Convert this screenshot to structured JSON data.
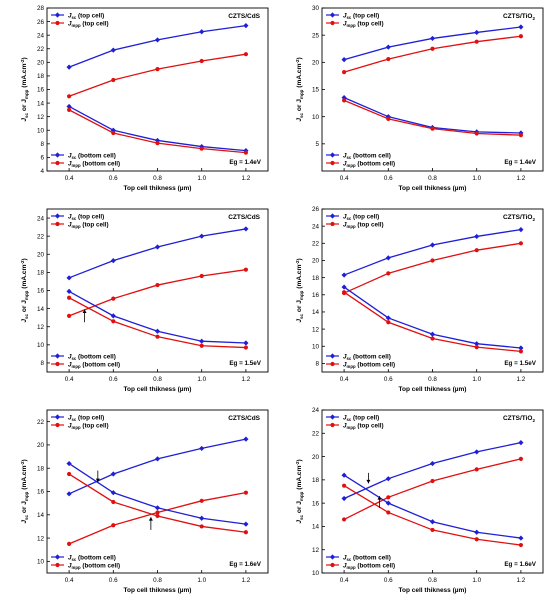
{
  "figure": {
    "xlabel": "Top cell thikness (µm)",
    "ylabel_main": "J",
    "ylabel_sub1": "sc",
    "ylabel_mid": " or J",
    "ylabel_sub2": "mpp",
    "ylabel_unit": " (mA.cm",
    "ylabel_sup": "-2",
    "ylabel_end": ")"
  },
  "legend": {
    "top_jsc": "top cell",
    "top_jmpp": "top cell",
    "bottom_jsc": "bottom cell",
    "bottom_jmpp": "bottom cell"
  },
  "colors": {
    "jsc": "#1f1fd6",
    "jmpp": "#e01010",
    "axis": "#000000"
  },
  "chart_data": [
    {
      "type": "line",
      "title": "CZTS/CdS",
      "annotation": "Eg = 1.4eV",
      "x": [
        0.4,
        0.6,
        0.8,
        1.0,
        1.2
      ],
      "xlim": [
        0.3,
        1.3
      ],
      "xticks": [
        "0.4",
        "0.6",
        "0.8",
        "1.0",
        "1.2"
      ],
      "ylim": [
        4,
        28
      ],
      "yticks": [
        4,
        6,
        8,
        10,
        12,
        14,
        16,
        18,
        20,
        22,
        24,
        26,
        28
      ],
      "series": [
        {
          "name": "Jsc (top cell)",
          "color": "#1f1fd6",
          "marker": "diamond",
          "values": [
            19.3,
            21.8,
            23.3,
            24.5,
            25.4
          ]
        },
        {
          "name": "Jmpp (top cell)",
          "color": "#e01010",
          "marker": "circle",
          "values": [
            15.0,
            17.4,
            19.0,
            20.2,
            21.2
          ]
        },
        {
          "name": "Jsc (bottom cell)",
          "color": "#1f1fd6",
          "marker": "diamond",
          "values": [
            13.5,
            10.0,
            8.5,
            7.6,
            7.0
          ]
        },
        {
          "name": "Jmpp (bottom cell)",
          "color": "#e01010",
          "marker": "circle",
          "values": [
            13.0,
            9.6,
            8.1,
            7.3,
            6.7
          ]
        }
      ],
      "arrows": []
    },
    {
      "type": "line",
      "title": "CZTS/TiO",
      "title_sub": "2",
      "annotation": "Eg = 1.4eV",
      "x": [
        0.4,
        0.6,
        0.8,
        1.0,
        1.2
      ],
      "xlim": [
        0.3,
        1.3
      ],
      "xticks": [
        "0.4",
        "0.6",
        "0.8",
        "1.0",
        "1.2"
      ],
      "ylim": [
        0,
        30
      ],
      "yticks": [
        5,
        10,
        15,
        20,
        25,
        30
      ],
      "series": [
        {
          "name": "Jsc (top cell)",
          "color": "#1f1fd6",
          "marker": "diamond",
          "values": [
            20.5,
            22.8,
            24.4,
            25.5,
            26.5
          ]
        },
        {
          "name": "Jmpp (top cell)",
          "color": "#e01010",
          "marker": "circle",
          "values": [
            18.2,
            20.6,
            22.5,
            23.8,
            24.8
          ]
        },
        {
          "name": "Jsc (bottom cell)",
          "color": "#1f1fd6",
          "marker": "diamond",
          "values": [
            13.5,
            10.0,
            8.0,
            7.2,
            7.0
          ]
        },
        {
          "name": "Jmpp (bottom cell)",
          "color": "#e01010",
          "marker": "circle",
          "values": [
            13.0,
            9.6,
            7.8,
            6.9,
            6.6
          ]
        }
      ],
      "arrows": []
    },
    {
      "type": "line",
      "title": "CZTS/CdS",
      "annotation": "Eg = 1.5eV",
      "x": [
        0.4,
        0.6,
        0.8,
        1.0,
        1.2
      ],
      "xlim": [
        0.3,
        1.3
      ],
      "xticks": [
        "0.4",
        "0.6",
        "0.8",
        "1.0",
        "1.2"
      ],
      "ylim": [
        7,
        25
      ],
      "yticks": [
        8,
        10,
        12,
        14,
        16,
        18,
        20,
        22,
        24
      ],
      "series": [
        {
          "name": "Jsc (top cell)",
          "color": "#1f1fd6",
          "marker": "diamond",
          "values": [
            17.4,
            19.3,
            20.8,
            22.0,
            22.8
          ]
        },
        {
          "name": "Jmpp (top cell)",
          "color": "#e01010",
          "marker": "circle",
          "values": [
            13.2,
            15.1,
            16.6,
            17.6,
            18.3
          ]
        },
        {
          "name": "Jsc (bottom cell)",
          "color": "#1f1fd6",
          "marker": "diamond",
          "values": [
            15.9,
            13.2,
            11.5,
            10.4,
            10.2
          ]
        },
        {
          "name": "Jmpp (bottom cell)",
          "color": "#e01010",
          "marker": "circle",
          "values": [
            15.2,
            12.6,
            10.9,
            9.9,
            9.7
          ]
        }
      ],
      "arrows": [
        {
          "x": 0.47,
          "y_from": 12.5,
          "y_to": 13.9
        }
      ]
    },
    {
      "type": "line",
      "title": "CZTS/TiO",
      "title_sub": "2",
      "annotation": "Eg = 1.5eV",
      "x": [
        0.4,
        0.6,
        0.8,
        1.0,
        1.2
      ],
      "xlim": [
        0.3,
        1.3
      ],
      "xticks": [
        "0.4",
        "0.6",
        "0.8",
        "1.0",
        "1.2"
      ],
      "ylim": [
        7,
        26
      ],
      "yticks": [
        8,
        10,
        12,
        14,
        16,
        18,
        20,
        22,
        24,
        26
      ],
      "series": [
        {
          "name": "Jsc (top cell)",
          "color": "#1f1fd6",
          "marker": "diamond",
          "values": [
            18.3,
            20.3,
            21.8,
            22.8,
            23.6
          ]
        },
        {
          "name": "Jmpp (top cell)",
          "color": "#e01010",
          "marker": "circle",
          "values": [
            16.2,
            18.5,
            20.0,
            21.2,
            22.0
          ]
        },
        {
          "name": "Jsc (bottom cell)",
          "color": "#1f1fd6",
          "marker": "diamond",
          "values": [
            16.9,
            13.3,
            11.4,
            10.3,
            9.8
          ]
        },
        {
          "name": "Jmpp (bottom cell)",
          "color": "#e01010",
          "marker": "circle",
          "values": [
            16.3,
            12.8,
            10.9,
            9.9,
            9.4
          ]
        }
      ],
      "arrows": []
    },
    {
      "type": "line",
      "title": "CZTS/CdS",
      "annotation": "Eg = 1.6eV",
      "x": [
        0.4,
        0.6,
        0.8,
        1.0,
        1.2
      ],
      "xlim": [
        0.3,
        1.3
      ],
      "xticks": [
        "0.4",
        "0.6",
        "0.8",
        "1.0",
        "1.2"
      ],
      "ylim": [
        9,
        23
      ],
      "yticks": [
        10,
        12,
        14,
        16,
        18,
        20,
        22
      ],
      "series": [
        {
          "name": "Jsc (top cell)",
          "color": "#1f1fd6",
          "marker": "diamond",
          "values": [
            15.8,
            17.5,
            18.8,
            19.7,
            20.5
          ]
        },
        {
          "name": "Jmpp (top cell)",
          "color": "#e01010",
          "marker": "circle",
          "values": [
            11.5,
            13.1,
            14.2,
            15.2,
            15.9
          ]
        },
        {
          "name": "Jsc (bottom cell)",
          "color": "#1f1fd6",
          "marker": "diamond",
          "values": [
            18.4,
            15.9,
            14.6,
            13.7,
            13.2
          ]
        },
        {
          "name": "Jmpp (bottom cell)",
          "color": "#e01010",
          "marker": "circle",
          "values": [
            17.5,
            15.1,
            13.9,
            13.0,
            12.5
          ]
        }
      ],
      "arrows": [
        {
          "x": 0.53,
          "y_from": 17.8,
          "y_to": 16.8
        },
        {
          "x": 0.77,
          "y_from": 12.7,
          "y_to": 13.8
        }
      ]
    },
    {
      "type": "line",
      "title": "CZTS/TiO",
      "title_sub": "2",
      "annotation": "Eg = 1.6eV",
      "x": [
        0.4,
        0.6,
        0.8,
        1.0,
        1.2
      ],
      "xlim": [
        0.3,
        1.3
      ],
      "xticks": [
        "0.4",
        "0.6",
        "0.8",
        "1.0",
        "1.2"
      ],
      "ylim": [
        10,
        24
      ],
      "yticks": [
        10,
        12,
        14,
        16,
        18,
        20,
        22,
        24
      ],
      "series": [
        {
          "name": "Jsc (top cell)",
          "color": "#1f1fd6",
          "marker": "diamond",
          "values": [
            16.4,
            18.1,
            19.4,
            20.4,
            21.2
          ]
        },
        {
          "name": "Jmpp (top cell)",
          "color": "#e01010",
          "marker": "circle",
          "values": [
            14.6,
            16.5,
            17.9,
            18.9,
            19.8
          ]
        },
        {
          "name": "Jsc (bottom cell)",
          "color": "#1f1fd6",
          "marker": "diamond",
          "values": [
            18.4,
            16.0,
            14.4,
            13.5,
            13.0
          ]
        },
        {
          "name": "Jmpp (bottom cell)",
          "color": "#e01010",
          "marker": "circle",
          "values": [
            17.5,
            15.2,
            13.7,
            12.9,
            12.4
          ]
        }
      ],
      "arrows": [
        {
          "x": 0.51,
          "y_from": 18.6,
          "y_to": 17.7
        },
        {
          "x": 0.56,
          "y_from": 15.6,
          "y_to": 16.6
        }
      ]
    }
  ]
}
